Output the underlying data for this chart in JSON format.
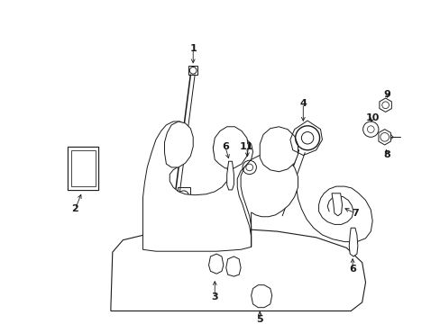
{
  "bg": "#ffffff",
  "lc": "#1a1a1a",
  "lw": 0.7,
  "fig_w": 4.89,
  "fig_h": 3.6,
  "dpi": 100
}
